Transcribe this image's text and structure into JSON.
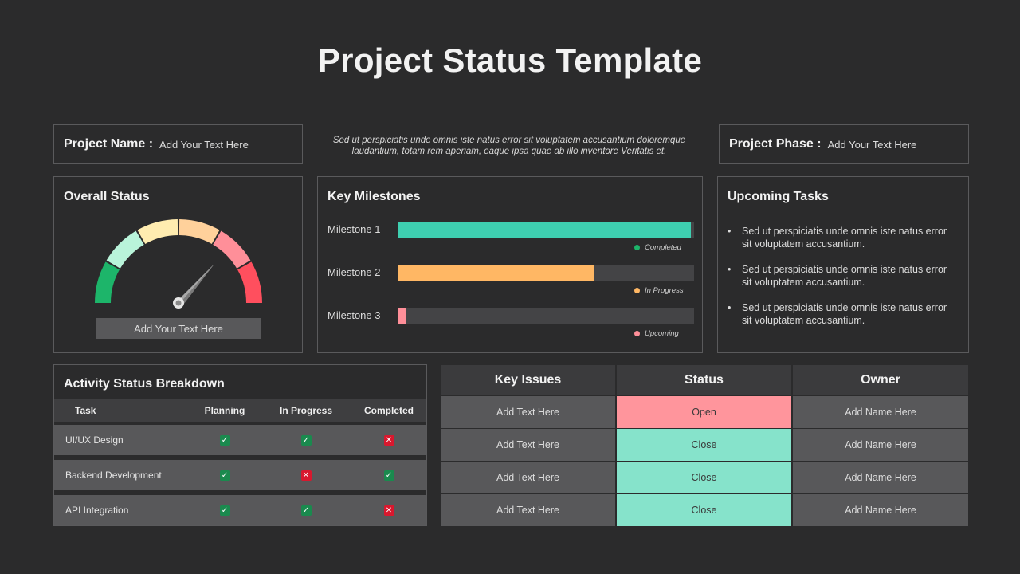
{
  "title": "Project Status Template",
  "project_name": {
    "label": "Project Name :",
    "value": "Add Your Text Here"
  },
  "project_phase": {
    "label": "Project Phase :",
    "value": "Add Your Text Here"
  },
  "description": "Sed ut perspiciatis unde omnis iste natus error sit voluptatem accusantium doloremque laudantium, totam rem aperiam, eaque ipsa quae ab illo inventore Veritatis et.",
  "overall_status": {
    "title": "Overall Status",
    "button": "Add Your Text Here",
    "segment_colors": [
      "#1db56a",
      "#b9f4da",
      "#ffecb0",
      "#ffd19b",
      "#ff8f99",
      "#ff4f5e"
    ]
  },
  "key_milestones": {
    "title": "Key Milestones",
    "items": [
      {
        "label": "Milestone 1",
        "progress": 0.99,
        "color": "#3ecfb0",
        "status": "Completed",
        "dot_color": "#1db56a"
      },
      {
        "label": "Milestone 2",
        "progress": 0.66,
        "color": "#ffb764",
        "status": "In Progress",
        "dot_color": "#ffb764"
      },
      {
        "label": "Milestone 3",
        "progress": 0.03,
        "color": "#ff8f99",
        "status": "Upcoming",
        "dot_color": "#ff8f99"
      }
    ]
  },
  "upcoming_tasks": {
    "title": "Upcoming Tasks",
    "bullet": "•",
    "items": [
      "Sed ut perspiciatis unde omnis iste natus error sit voluptatem accusantium.",
      "Sed ut perspiciatis unde omnis iste natus error sit voluptatem accusantium.",
      "Sed ut perspiciatis unde omnis iste natus error sit voluptatem accusantium."
    ]
  },
  "activity": {
    "title": "Activity Status Breakdown",
    "headers": [
      "Task",
      "Planning",
      "In Progress",
      "Completed"
    ],
    "rows": [
      {
        "task": "UI/UX Design",
        "planning": true,
        "in_progress": true,
        "completed": false
      },
      {
        "task": "Backend Development",
        "planning": true,
        "in_progress": false,
        "completed": true
      },
      {
        "task": "API Integration",
        "planning": true,
        "in_progress": true,
        "completed": false
      }
    ],
    "check_color": "#1a8a4e",
    "cross_color": "#d8182e"
  },
  "issues": {
    "headers": [
      "Key Issues",
      "Status",
      "Owner"
    ],
    "rows": [
      {
        "issue": "Add Text Here",
        "status": "Open",
        "status_color": "#ff959c",
        "owner": "Add Name Here"
      },
      {
        "issue": "Add Text Here",
        "status": "Close",
        "status_color": "#86e3cb",
        "owner": "Add Name Here"
      },
      {
        "issue": "Add Text Here",
        "status": "Close",
        "status_color": "#86e3cb",
        "owner": "Add Name Here"
      },
      {
        "issue": "Add Text Here",
        "status": "Close",
        "status_color": "#86e3cb",
        "owner": "Add Name Here"
      }
    ]
  }
}
